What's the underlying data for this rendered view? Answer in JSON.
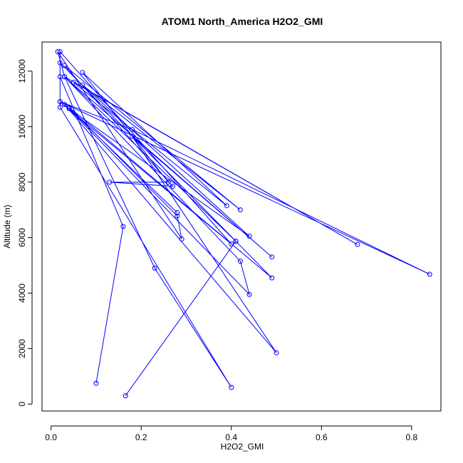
{
  "chart_data": {
    "type": "line",
    "title": "ATOM1 North_America H2O2_GMI",
    "xlabel": "H2O2_GMI",
    "ylabel": "Altitude (m)",
    "xlim": [
      -0.02,
      0.865
    ],
    "ylim": [
      -250,
      13050
    ],
    "xticks": [
      0,
      0.2,
      0.4,
      0.6,
      0.8
    ],
    "xtick_labels": [
      "0.0",
      "0.2",
      "0.4",
      "0.6",
      "0.8"
    ],
    "yticks": [
      0,
      2000,
      4000,
      6000,
      8000,
      10000,
      12000
    ],
    "ytick_labels": [
      "0",
      "2000",
      "4000",
      "6000",
      "8000",
      "10000",
      "12000"
    ],
    "grid": false,
    "markers": "open-circle",
    "series": [
      {
        "color": "#0000ff",
        "points": [
          [
            0.1,
            750
          ],
          [
            0.16,
            6400
          ],
          [
            0.02,
            11800
          ],
          [
            0.02,
            10900
          ],
          [
            0.18,
            9900
          ],
          [
            0.84,
            4680
          ],
          [
            0.02,
            10900
          ],
          [
            0.4,
            5770
          ],
          [
            0.02,
            12700
          ],
          [
            0.02,
            10700
          ],
          [
            0.4,
            600
          ],
          [
            0.23,
            4900
          ],
          [
            0.03,
            11800
          ],
          [
            0.015,
            12700
          ],
          [
            0.29,
            5950
          ],
          [
            0.28,
            6780
          ],
          [
            0.04,
            10700
          ],
          [
            0.49,
            4550
          ],
          [
            0.02,
            12300
          ],
          [
            0.41,
            5870
          ],
          [
            0.165,
            300
          ],
          [
            0.41,
            5870
          ],
          [
            0.03,
            11800
          ],
          [
            0.49,
            5300
          ],
          [
            0.18,
            9650
          ],
          [
            0.5,
            1850
          ],
          [
            0.03,
            10800
          ],
          [
            0.44,
            3950
          ],
          [
            0.42,
            5150
          ],
          [
            0.03,
            11800
          ],
          [
            0.68,
            5750
          ],
          [
            0.05,
            11600
          ],
          [
            0.39,
            7150
          ],
          [
            0.07,
            11950
          ],
          [
            0.26,
            8000
          ],
          [
            0.13,
            8000
          ],
          [
            0.27,
            7850
          ],
          [
            0.03,
            12200
          ],
          [
            0.42,
            7000
          ],
          [
            0.07,
            11500
          ],
          [
            0.44,
            6050
          ],
          [
            0.04,
            10650
          ],
          [
            0.28,
            6900
          ]
        ]
      }
    ]
  }
}
